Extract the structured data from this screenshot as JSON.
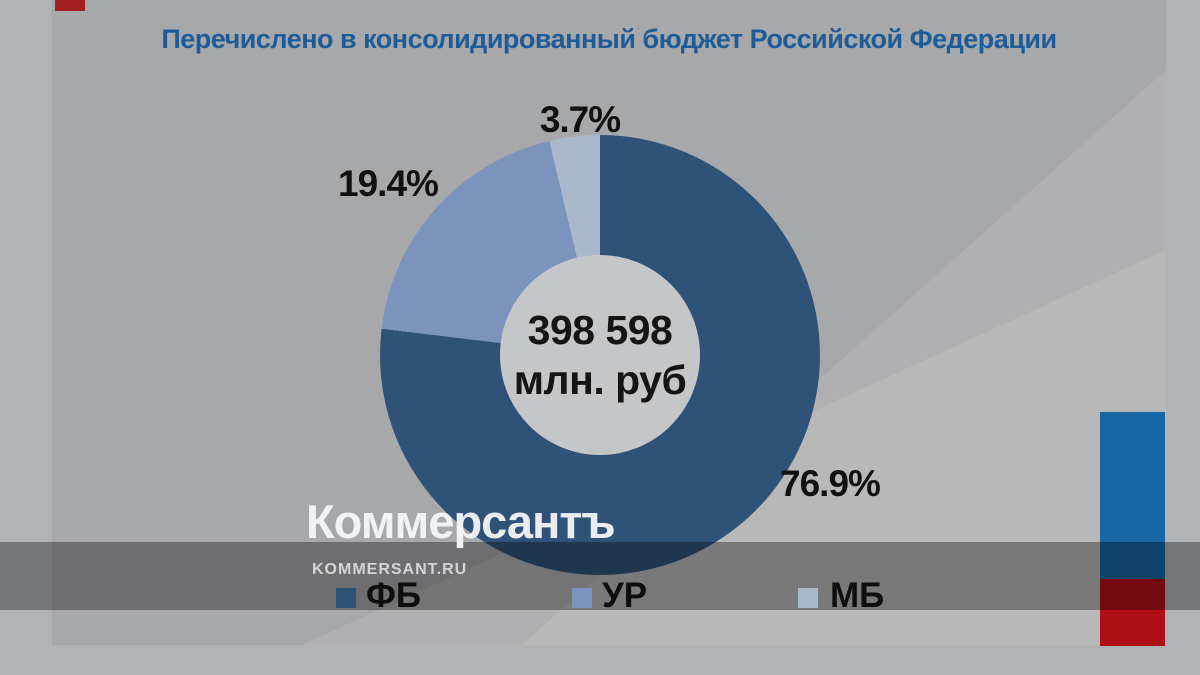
{
  "title": {
    "text": "Перечислено в консолидированный бюджет Российской Федерации",
    "color": "#1E5C99"
  },
  "chart_data": {
    "type": "pie",
    "donut": true,
    "title": "Перечислено в консолидированный бюджет Российской Федерации",
    "start_angle_deg": 0,
    "direction": "clockwise",
    "legend_position": "bottom",
    "center_label": {
      "line1": "398 598",
      "line2": "млн. руб"
    },
    "total": {
      "value": 398598,
      "unit": "млн. руб"
    },
    "series": [
      {
        "label": "ФБ",
        "value_pct": 76.9,
        "pct_label": "76.9%",
        "color": "#2F5378"
      },
      {
        "label": "УР",
        "value_pct": 19.4,
        "pct_label": "19.4%",
        "color": "#7A94BD"
      },
      {
        "label": "МБ",
        "value_pct": 3.7,
        "pct_label": "3.7%",
        "color": "#A9B9CB"
      }
    ]
  },
  "watermark": {
    "logo": "Коммерсантъ",
    "site": "KOMMERSANT.RU"
  },
  "decorations": {
    "top_left_chip_color": "#A11D1F",
    "side_bar_top_color": "#1766A5",
    "side_bar_bottom_color": "#AF1015",
    "slide_bg": "#A7A8AA",
    "page_bg": "#B1B2B4",
    "donut_hole_bg": "#C5C6C8"
  }
}
